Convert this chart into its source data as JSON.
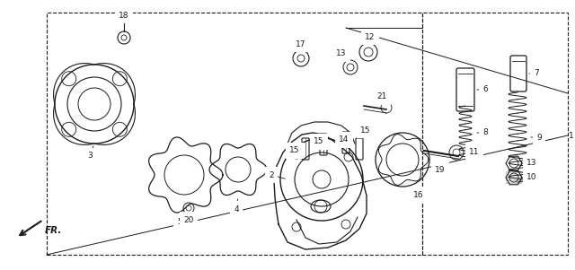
{
  "bg_color": "#ffffff",
  "line_color": "#1a1a1a",
  "fig_width": 6.4,
  "fig_height": 3.01,
  "dpi": 100
}
